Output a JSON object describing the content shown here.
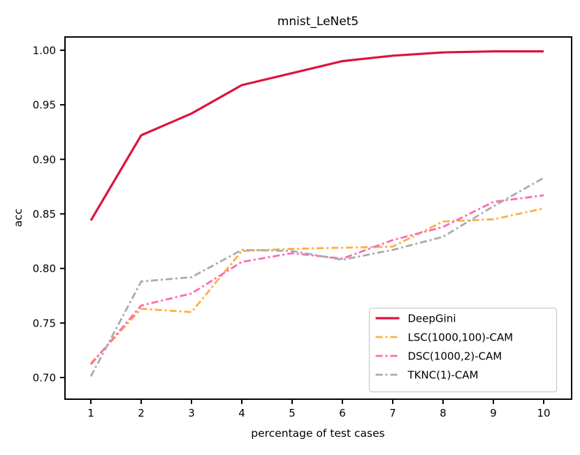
{
  "figure": {
    "title": "mnist_LeNet5",
    "xlabel": "percentage of test cases",
    "ylabel": "acc"
  },
  "chart_data": {
    "type": "line",
    "title": "mnist_LeNet5",
    "xlabel": "percentage of test cases",
    "ylabel": "acc",
    "x": [
      1,
      2,
      3,
      4,
      5,
      6,
      7,
      8,
      9,
      10
    ],
    "xticks": [
      "1",
      "2",
      "3",
      "4",
      "5",
      "6",
      "7",
      "8",
      "9",
      "10"
    ],
    "yticks": [
      "0.70",
      "0.75",
      "0.80",
      "0.85",
      "0.90",
      "0.95",
      "1.00"
    ],
    "xlim": [
      0.49,
      10.53
    ],
    "ylim": [
      0.68,
      1.012
    ],
    "grid": false,
    "legend_position": "lower right",
    "series": [
      {
        "name": "DeepGini",
        "color": "#dc143c",
        "linestyle": "solid",
        "linewidth": 3.2,
        "values": [
          0.844,
          0.922,
          0.942,
          0.968,
          0.979,
          0.99,
          0.995,
          0.998,
          0.999,
          0.999
        ]
      },
      {
        "name": "LSC(1000,100)-CAM",
        "color": "#fcaf45",
        "linestyle": "dashdot",
        "linewidth": 2.8,
        "values": [
          0.713,
          0.763,
          0.76,
          0.816,
          0.818,
          0.819,
          0.82,
          0.843,
          0.845,
          0.855
        ]
      },
      {
        "name": "DSC(1000,2)-CAM",
        "color": "#ff69b4",
        "linestyle": "dashdot",
        "linewidth": 2.8,
        "values": [
          0.712,
          0.766,
          0.777,
          0.806,
          0.814,
          0.809,
          0.826,
          0.838,
          0.861,
          0.867
        ]
      },
      {
        "name": "TKNC(1)-CAM",
        "color": "#ababab",
        "linestyle": "dashdot",
        "linewidth": 2.8,
        "values": [
          0.701,
          0.788,
          0.792,
          0.817,
          0.816,
          0.808,
          0.817,
          0.829,
          0.857,
          0.883
        ]
      }
    ]
  }
}
